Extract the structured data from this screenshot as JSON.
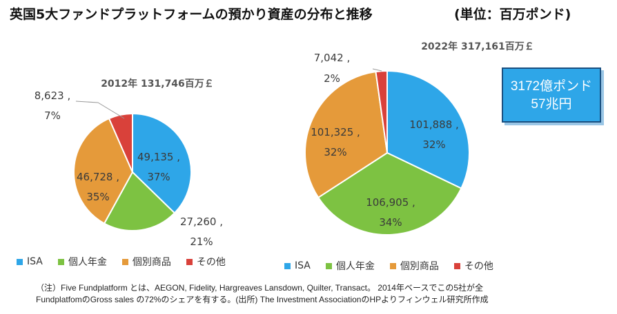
{
  "title": "英国5大ファンドプラットフォームの預かり資産の分布と推移",
  "unit_label": "(単位：百万ポンド)",
  "callout": {
    "line1": "3172億ポンド",
    "line2": "57兆円"
  },
  "colors": {
    "ISA": "#2ea6e8",
    "個人年金": "#7dc242",
    "個別商品": "#e59a3a",
    "その他": "#d9413a"
  },
  "chart_data": [
    {
      "type": "pie",
      "title": "2012年 131,746百万￡",
      "categories": [
        "ISA",
        "個人年金",
        "個別商品",
        "その他"
      ],
      "values": [
        49135,
        27260,
        46728,
        8623
      ],
      "value_labels": [
        "49,135 ,",
        "27,260 ,",
        "46,728 ,",
        "8,623 ,"
      ],
      "percent_labels": [
        "37%",
        "21%",
        "35%",
        "7%"
      ],
      "legend": [
        "ISA",
        "個人年金",
        "個別商品",
        "その他"
      ]
    },
    {
      "type": "pie",
      "title": "2022年 317,161百万￡",
      "categories": [
        "ISA",
        "個人年金",
        "個別商品",
        "その他"
      ],
      "values": [
        101888,
        106905,
        101325,
        7042
      ],
      "value_labels": [
        "101,888 ,",
        "106,905 ,",
        "101,325 ,",
        "7,042 ,"
      ],
      "percent_labels": [
        "32%",
        "34%",
        "32%",
        "2%"
      ],
      "legend": [
        "ISA",
        "個人年金",
        "個別商品",
        "その他"
      ]
    }
  ],
  "note": {
    "line1": "（注）Five Fundplatform とは、AEGON, Fidelity, Hargreaves Lansdown, Quilter, Transact。 2014年ベースでこの5社が全",
    "line2": "FundplatfomのGross sales の72%のシェアを有する。(出所) The Investment AssociationのHPよりフィンウェル研究所作成"
  }
}
